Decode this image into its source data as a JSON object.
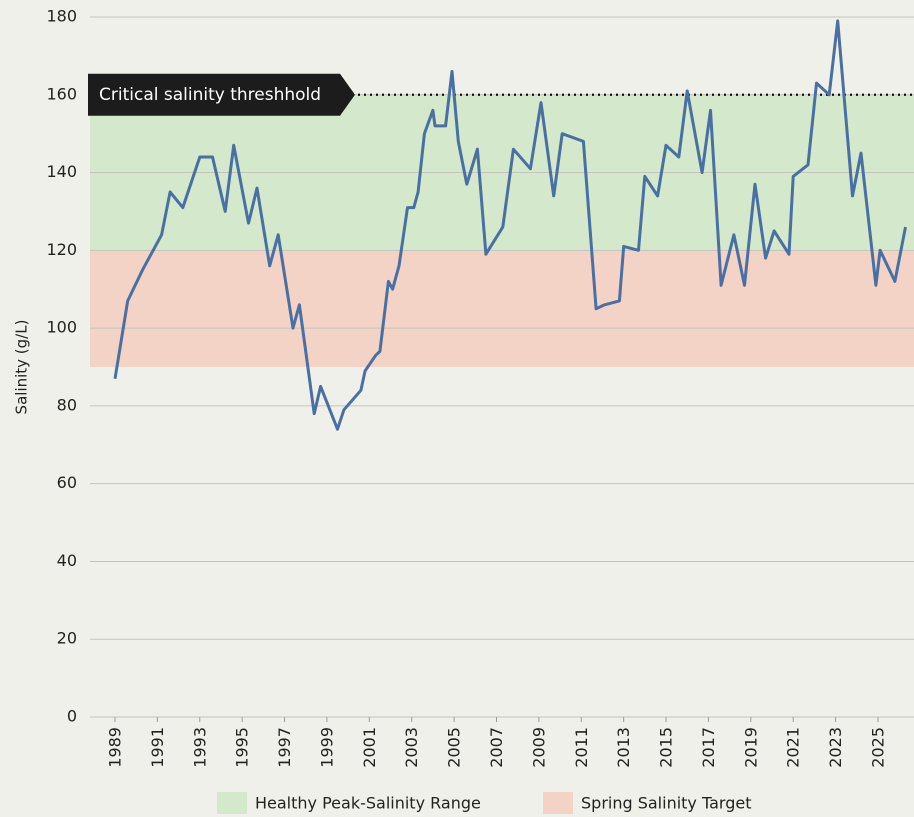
{
  "chart_data": {
    "type": "line",
    "y_label": "Salinity (g/L)",
    "xlim": [
      1987.82,
      2026.7
    ],
    "ylim": [
      0,
      180
    ],
    "xticks": [
      1989,
      1991,
      1993,
      1995,
      1997,
      1999,
      2001,
      2003,
      2005,
      2007,
      2009,
      2011,
      2013,
      2015,
      2017,
      2019,
      2021,
      2023,
      2025
    ],
    "yticks": [
      0,
      20,
      40,
      60,
      80,
      100,
      120,
      140,
      160,
      180
    ],
    "grid": true,
    "bands": [
      {
        "name": "Healthy Peak-Salinity Range",
        "range": [
          120,
          160
        ],
        "color": "#d4e8cb"
      },
      {
        "name": "Spring Salinity Target",
        "range": [
          90,
          120
        ],
        "color": "#f4d3c7"
      }
    ],
    "threshold": {
      "label": "Critical salinity threshhold",
      "value": 160
    },
    "x": [
      1989.0,
      1989.6,
      1990.3,
      1991.2,
      1991.6,
      1992.2,
      1993.0,
      1993.6,
      1994.2,
      1994.6,
      1995.3,
      1995.7,
      1996.3,
      1996.7,
      1997.4,
      1997.7,
      1998.4,
      1998.7,
      1999.5,
      1999.8,
      2000.6,
      2000.8,
      2001.3,
      2001.5,
      2001.9,
      2002.1,
      2002.4,
      2002.8,
      2003.1,
      2003.3,
      2003.6,
      2004.0,
      2004.1,
      2004.6,
      2004.9,
      2005.2,
      2005.6,
      2006.1,
      2006.5,
      2007.3,
      2007.8,
      2008.6,
      2009.1,
      2009.7,
      2010.1,
      2011.1,
      2011.7,
      2012.1,
      2012.8,
      2013.0,
      2013.7,
      2014.0,
      2014.6,
      2015.0,
      2015.6,
      2016.0,
      2016.7,
      2017.1,
      2017.6,
      2018.2,
      2018.7,
      2019.2,
      2019.7,
      2020.1,
      2020.8,
      2021.0,
      2021.7,
      2022.1,
      2022.7,
      2023.1,
      2023.8,
      2024.2,
      2024.9,
      2025.1,
      2025.8,
      2026.3
    ],
    "series": [
      {
        "color": "#4a6fa2",
        "values": [
          87,
          107,
          115,
          124,
          135,
          131,
          144,
          144,
          130,
          147,
          127,
          136,
          116,
          124,
          100,
          106,
          78,
          85,
          74,
          79,
          84,
          89,
          93,
          94,
          112,
          110,
          116,
          131,
          131,
          135,
          150,
          156,
          152,
          152,
          166,
          148,
          137,
          146,
          119,
          126,
          146,
          141,
          158,
          134,
          150,
          148,
          105,
          106,
          107,
          121,
          120,
          139,
          134,
          147,
          144,
          161,
          140,
          156,
          111,
          124,
          111,
          137,
          118,
          125,
          119,
          139,
          142,
          163,
          160,
          179,
          134,
          145,
          111,
          120,
          112,
          126
        ]
      }
    ]
  }
}
